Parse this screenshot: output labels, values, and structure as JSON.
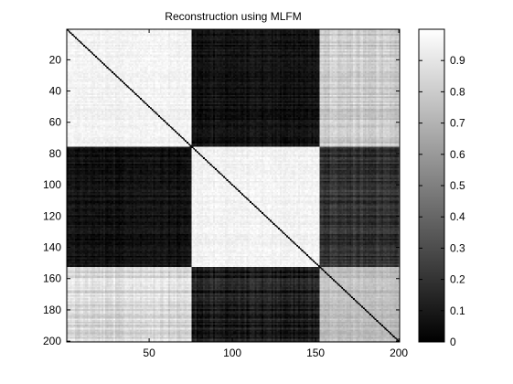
{
  "chart_data": {
    "type": "heatmap",
    "title": "Reconstruction using MLFM",
    "n": 200,
    "x_ticks": [
      50,
      100,
      150,
      200
    ],
    "y_ticks": [
      20,
      40,
      60,
      80,
      100,
      120,
      140,
      160,
      180,
      200
    ],
    "xlim": [
      1,
      200
    ],
    "ylim": [
      1,
      200
    ],
    "colormap": "gray",
    "colorbar": {
      "range": [
        0,
        1
      ],
      "ticks": [
        0,
        0.1,
        0.2,
        0.3,
        0.4,
        0.5,
        0.6,
        0.7,
        0.8,
        0.9
      ],
      "tick_labels": [
        "0",
        "0.1",
        "0.2",
        "0.3",
        "0.4",
        "0.5",
        "0.6",
        "0.7",
        "0.8",
        "0.9"
      ]
    },
    "diagonal_value": 0,
    "blocks": {
      "boundaries": [
        1,
        76,
        153,
        200
      ],
      "mean_values": [
        [
          0.95,
          0.07,
          0.8
        ],
        [
          0.07,
          0.95,
          0.2
        ],
        [
          0.85,
          0.12,
          0.75
        ]
      ]
    },
    "grid": false,
    "legend": "none"
  }
}
